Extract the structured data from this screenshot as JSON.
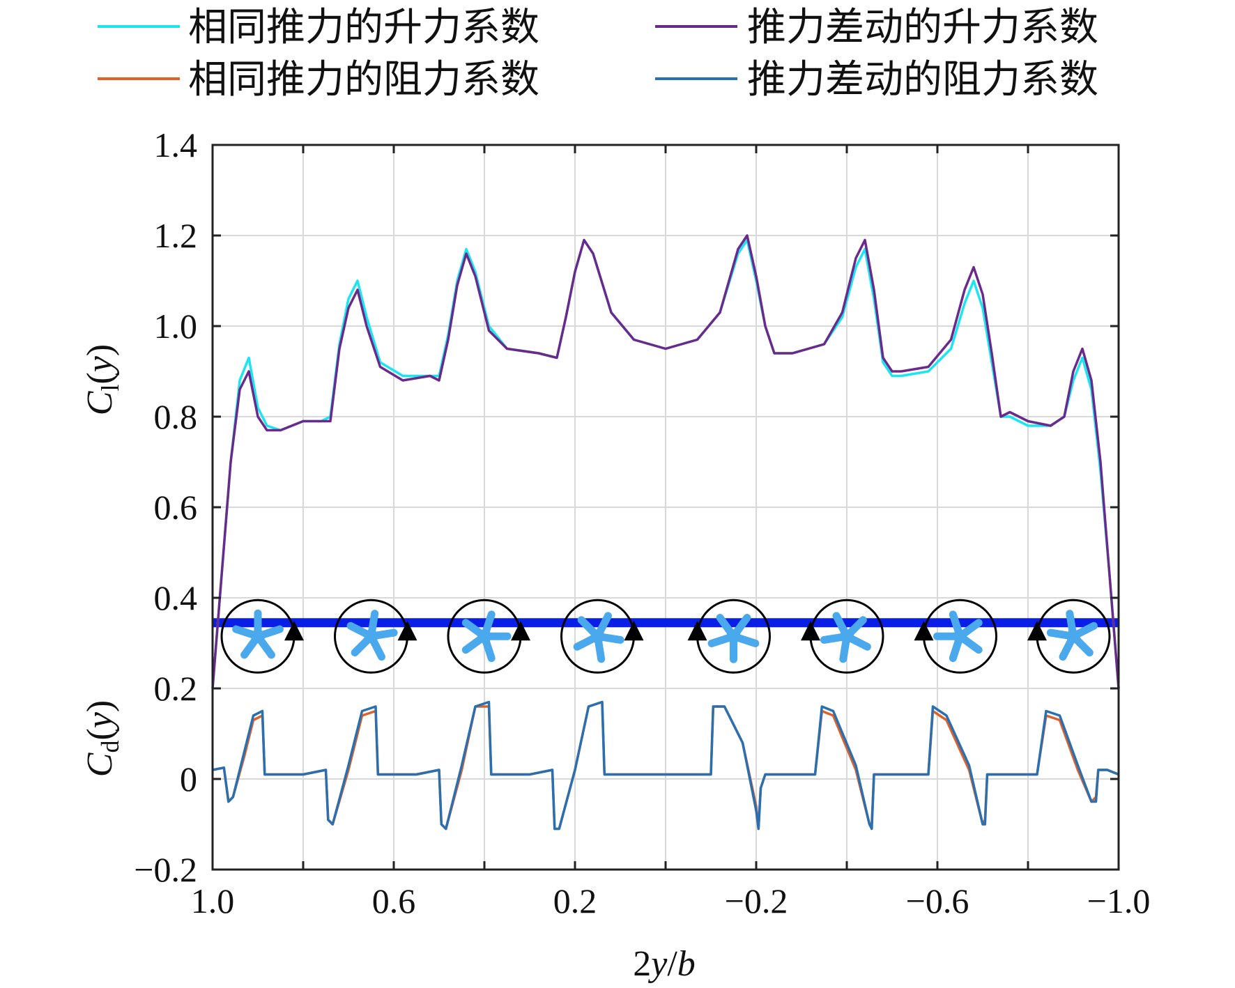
{
  "chart_data": {
    "type": "line",
    "xlabel": "2y/b",
    "ylabel_top": "C_l(y)",
    "ylabel_bottom": "C_d(y)",
    "xlim": [
      1.0,
      -1.0
    ],
    "ylim": [
      -0.2,
      1.4
    ],
    "grid": true,
    "legend_position": "top",
    "x_ticks": [
      {
        "value": 1.0,
        "label": "1.0"
      },
      {
        "value": 0.6,
        "label": "0.6"
      },
      {
        "value": 0.2,
        "label": "0.2"
      },
      {
        "value": -0.2,
        "label": "−0.2"
      },
      {
        "value": -0.6,
        "label": "−0.6"
      },
      {
        "value": -1.0,
        "label": "−1.0"
      }
    ],
    "x_minor_grid": [
      0.8,
      0.4,
      0.0,
      -0.4,
      -0.8
    ],
    "y_ticks": [
      {
        "value": 1.4,
        "label": "1.4"
      },
      {
        "value": 1.2,
        "label": "1.2"
      },
      {
        "value": 1.0,
        "label": "1.0"
      },
      {
        "value": 0.8,
        "label": "0.8"
      },
      {
        "value": 0.6,
        "label": "0.6"
      },
      {
        "value": 0.4,
        "label": "0.4"
      },
      {
        "value": 0.2,
        "label": "0.2"
      },
      {
        "value": 0.0,
        "label": "0"
      },
      {
        "value": -0.2,
        "label": "−0.2"
      }
    ],
    "series": [
      {
        "name": "相同推力的升力系数",
        "color": "#19e6f0",
        "points": [
          [
            1.0,
            0.2
          ],
          [
            0.98,
            0.45
          ],
          [
            0.96,
            0.7
          ],
          [
            0.94,
            0.88
          ],
          [
            0.92,
            0.93
          ],
          [
            0.9,
            0.82
          ],
          [
            0.88,
            0.78
          ],
          [
            0.85,
            0.77
          ],
          [
            0.8,
            0.79
          ],
          [
            0.76,
            0.79
          ],
          [
            0.74,
            0.8
          ],
          [
            0.72,
            0.96
          ],
          [
            0.7,
            1.06
          ],
          [
            0.68,
            1.1
          ],
          [
            0.66,
            1.02
          ],
          [
            0.63,
            0.92
          ],
          [
            0.58,
            0.89
          ],
          [
            0.52,
            0.89
          ],
          [
            0.5,
            0.89
          ],
          [
            0.48,
            0.98
          ],
          [
            0.46,
            1.1
          ],
          [
            0.44,
            1.17
          ],
          [
            0.42,
            1.12
          ],
          [
            0.39,
            1.0
          ],
          [
            0.35,
            0.95
          ],
          [
            0.28,
            0.94
          ],
          [
            0.24,
            0.93
          ],
          [
            0.22,
            1.02
          ],
          [
            0.2,
            1.12
          ],
          [
            0.18,
            1.19
          ],
          [
            0.16,
            1.16
          ],
          [
            0.12,
            1.03
          ],
          [
            0.07,
            0.97
          ],
          [
            0.0,
            0.95
          ],
          [
            -0.07,
            0.97
          ],
          [
            -0.12,
            1.03
          ],
          [
            -0.16,
            1.16
          ],
          [
            -0.18,
            1.19
          ],
          [
            -0.2,
            1.1
          ],
          [
            -0.22,
            1.0
          ],
          [
            -0.24,
            0.94
          ],
          [
            -0.28,
            0.94
          ],
          [
            -0.35,
            0.96
          ],
          [
            -0.39,
            1.02
          ],
          [
            -0.42,
            1.13
          ],
          [
            -0.44,
            1.17
          ],
          [
            -0.46,
            1.06
          ],
          [
            -0.48,
            0.92
          ],
          [
            -0.5,
            0.89
          ],
          [
            -0.52,
            0.89
          ],
          [
            -0.58,
            0.9
          ],
          [
            -0.63,
            0.95
          ],
          [
            -0.66,
            1.05
          ],
          [
            -0.68,
            1.1
          ],
          [
            -0.7,
            1.04
          ],
          [
            -0.72,
            0.92
          ],
          [
            -0.74,
            0.8
          ],
          [
            -0.76,
            0.8
          ],
          [
            -0.8,
            0.78
          ],
          [
            -0.85,
            0.78
          ],
          [
            -0.88,
            0.8
          ],
          [
            -0.9,
            0.88
          ],
          [
            -0.92,
            0.93
          ],
          [
            -0.94,
            0.86
          ],
          [
            -0.96,
            0.68
          ],
          [
            -0.98,
            0.45
          ],
          [
            -1.0,
            0.2
          ]
        ]
      },
      {
        "name": "推力差动的升力系数",
        "color": "#6a2a8c",
        "points": [
          [
            1.0,
            0.2
          ],
          [
            0.98,
            0.45
          ],
          [
            0.96,
            0.7
          ],
          [
            0.94,
            0.86
          ],
          [
            0.92,
            0.9
          ],
          [
            0.9,
            0.8
          ],
          [
            0.88,
            0.77
          ],
          [
            0.85,
            0.77
          ],
          [
            0.8,
            0.79
          ],
          [
            0.76,
            0.79
          ],
          [
            0.74,
            0.79
          ],
          [
            0.72,
            0.95
          ],
          [
            0.7,
            1.04
          ],
          [
            0.68,
            1.08
          ],
          [
            0.66,
            1.0
          ],
          [
            0.63,
            0.91
          ],
          [
            0.58,
            0.88
          ],
          [
            0.52,
            0.89
          ],
          [
            0.5,
            0.88
          ],
          [
            0.48,
            0.97
          ],
          [
            0.46,
            1.09
          ],
          [
            0.44,
            1.16
          ],
          [
            0.42,
            1.11
          ],
          [
            0.39,
            0.99
          ],
          [
            0.35,
            0.95
          ],
          [
            0.28,
            0.94
          ],
          [
            0.24,
            0.93
          ],
          [
            0.22,
            1.02
          ],
          [
            0.2,
            1.12
          ],
          [
            0.18,
            1.19
          ],
          [
            0.16,
            1.16
          ],
          [
            0.12,
            1.03
          ],
          [
            0.07,
            0.97
          ],
          [
            0.0,
            0.95
          ],
          [
            -0.07,
            0.97
          ],
          [
            -0.12,
            1.03
          ],
          [
            -0.16,
            1.17
          ],
          [
            -0.18,
            1.2
          ],
          [
            -0.2,
            1.11
          ],
          [
            -0.22,
            1.0
          ],
          [
            -0.24,
            0.94
          ],
          [
            -0.28,
            0.94
          ],
          [
            -0.35,
            0.96
          ],
          [
            -0.39,
            1.03
          ],
          [
            -0.42,
            1.15
          ],
          [
            -0.44,
            1.19
          ],
          [
            -0.46,
            1.08
          ],
          [
            -0.48,
            0.93
          ],
          [
            -0.5,
            0.9
          ],
          [
            -0.52,
            0.9
          ],
          [
            -0.58,
            0.91
          ],
          [
            -0.63,
            0.97
          ],
          [
            -0.66,
            1.08
          ],
          [
            -0.68,
            1.13
          ],
          [
            -0.7,
            1.07
          ],
          [
            -0.72,
            0.94
          ],
          [
            -0.74,
            0.8
          ],
          [
            -0.76,
            0.81
          ],
          [
            -0.8,
            0.79
          ],
          [
            -0.85,
            0.78
          ],
          [
            -0.88,
            0.8
          ],
          [
            -0.9,
            0.9
          ],
          [
            -0.92,
            0.95
          ],
          [
            -0.94,
            0.88
          ],
          [
            -0.96,
            0.7
          ],
          [
            -0.98,
            0.45
          ],
          [
            -1.0,
            0.2
          ]
        ]
      },
      {
        "name": "相同推力的阻力系数",
        "color": "#e0602a",
        "points": [
          [
            1.0,
            0.02
          ],
          [
            0.975,
            0.025
          ],
          [
            0.965,
            -0.05
          ],
          [
            0.955,
            -0.04
          ],
          [
            0.93,
            0.05
          ],
          [
            0.91,
            0.13
          ],
          [
            0.89,
            0.14
          ],
          [
            0.885,
            0.01
          ],
          [
            0.8,
            0.01
          ],
          [
            0.75,
            0.02
          ],
          [
            0.745,
            -0.09
          ],
          [
            0.735,
            -0.1
          ],
          [
            0.7,
            0.02
          ],
          [
            0.67,
            0.14
          ],
          [
            0.64,
            0.15
          ],
          [
            0.635,
            0.01
          ],
          [
            0.55,
            0.01
          ],
          [
            0.5,
            0.02
          ],
          [
            0.495,
            -0.1
          ],
          [
            0.485,
            -0.11
          ],
          [
            0.45,
            0.02
          ],
          [
            0.42,
            0.16
          ],
          [
            0.39,
            0.16
          ],
          [
            0.385,
            0.01
          ],
          [
            0.3,
            0.01
          ],
          [
            0.25,
            0.02
          ],
          [
            0.245,
            -0.11
          ],
          [
            0.235,
            -0.11
          ],
          [
            0.2,
            0.02
          ],
          [
            0.17,
            0.16
          ],
          [
            0.14,
            0.17
          ],
          [
            0.135,
            0.01
          ],
          [
            0.0,
            0.01
          ],
          [
            -0.1,
            0.01
          ],
          [
            -0.105,
            0.16
          ],
          [
            -0.13,
            0.16
          ],
          [
            -0.17,
            0.08
          ],
          [
            -0.2,
            -0.06
          ],
          [
            -0.205,
            -0.11
          ],
          [
            -0.21,
            -0.02
          ],
          [
            -0.22,
            0.01
          ],
          [
            -0.33,
            0.01
          ],
          [
            -0.345,
            0.15
          ],
          [
            -0.37,
            0.14
          ],
          [
            -0.42,
            0.02
          ],
          [
            -0.45,
            -0.1
          ],
          [
            -0.455,
            -0.1
          ],
          [
            -0.46,
            0.01
          ],
          [
            -0.58,
            0.01
          ],
          [
            -0.59,
            0.15
          ],
          [
            -0.62,
            0.13
          ],
          [
            -0.67,
            0.02
          ],
          [
            -0.7,
            -0.1
          ],
          [
            -0.705,
            -0.09
          ],
          [
            -0.71,
            0.01
          ],
          [
            -0.82,
            0.01
          ],
          [
            -0.84,
            0.14
          ],
          [
            -0.87,
            0.13
          ],
          [
            -0.91,
            0.02
          ],
          [
            -0.94,
            -0.05
          ],
          [
            -0.95,
            -0.04
          ],
          [
            -0.955,
            0.02
          ],
          [
            -0.975,
            0.02
          ],
          [
            -1.0,
            0.01
          ]
        ]
      },
      {
        "name": "推力差动的阻力系数",
        "color": "#2a6fb0",
        "points": [
          [
            1.0,
            0.02
          ],
          [
            0.975,
            0.025
          ],
          [
            0.965,
            -0.05
          ],
          [
            0.955,
            -0.04
          ],
          [
            0.93,
            0.06
          ],
          [
            0.91,
            0.14
          ],
          [
            0.89,
            0.15
          ],
          [
            0.885,
            0.01
          ],
          [
            0.8,
            0.01
          ],
          [
            0.75,
            0.02
          ],
          [
            0.745,
            -0.09
          ],
          [
            0.735,
            -0.1
          ],
          [
            0.7,
            0.03
          ],
          [
            0.67,
            0.15
          ],
          [
            0.64,
            0.16
          ],
          [
            0.635,
            0.01
          ],
          [
            0.55,
            0.01
          ],
          [
            0.5,
            0.02
          ],
          [
            0.495,
            -0.1
          ],
          [
            0.485,
            -0.11
          ],
          [
            0.45,
            0.03
          ],
          [
            0.42,
            0.16
          ],
          [
            0.39,
            0.17
          ],
          [
            0.385,
            0.01
          ],
          [
            0.3,
            0.01
          ],
          [
            0.25,
            0.02
          ],
          [
            0.245,
            -0.11
          ],
          [
            0.235,
            -0.11
          ],
          [
            0.2,
            0.02
          ],
          [
            0.17,
            0.16
          ],
          [
            0.14,
            0.17
          ],
          [
            0.135,
            0.01
          ],
          [
            0.0,
            0.01
          ],
          [
            -0.1,
            0.01
          ],
          [
            -0.105,
            0.16
          ],
          [
            -0.13,
            0.16
          ],
          [
            -0.17,
            0.08
          ],
          [
            -0.2,
            -0.07
          ],
          [
            -0.205,
            -0.11
          ],
          [
            -0.21,
            -0.02
          ],
          [
            -0.22,
            0.01
          ],
          [
            -0.33,
            0.01
          ],
          [
            -0.345,
            0.16
          ],
          [
            -0.37,
            0.15
          ],
          [
            -0.42,
            0.03
          ],
          [
            -0.45,
            -0.1
          ],
          [
            -0.455,
            -0.11
          ],
          [
            -0.46,
            0.01
          ],
          [
            -0.58,
            0.01
          ],
          [
            -0.59,
            0.16
          ],
          [
            -0.62,
            0.14
          ],
          [
            -0.67,
            0.03
          ],
          [
            -0.7,
            -0.1
          ],
          [
            -0.705,
            -0.1
          ],
          [
            -0.71,
            0.01
          ],
          [
            -0.82,
            0.01
          ],
          [
            -0.84,
            0.15
          ],
          [
            -0.87,
            0.14
          ],
          [
            -0.91,
            0.03
          ],
          [
            -0.94,
            -0.05
          ],
          [
            -0.95,
            -0.05
          ],
          [
            -0.955,
            0.02
          ],
          [
            -0.975,
            0.02
          ],
          [
            -1.0,
            0.01
          ]
        ]
      }
    ],
    "wing_band": {
      "x_start": 1.0,
      "x_end": -1.0,
      "y": 0.345,
      "color": "#0a1ee6"
    },
    "propellers": [
      {
        "x": 0.9,
        "rotation": "right"
      },
      {
        "x": 0.65,
        "rotation": "right"
      },
      {
        "x": 0.4,
        "rotation": "right"
      },
      {
        "x": 0.15,
        "rotation": "right"
      },
      {
        "x": -0.15,
        "rotation": "left"
      },
      {
        "x": -0.4,
        "rotation": "left"
      },
      {
        "x": -0.65,
        "rotation": "left"
      },
      {
        "x": -0.9,
        "rotation": "left"
      }
    ],
    "propeller_y": 0.315,
    "propeller_color": "#4aa8ec"
  }
}
